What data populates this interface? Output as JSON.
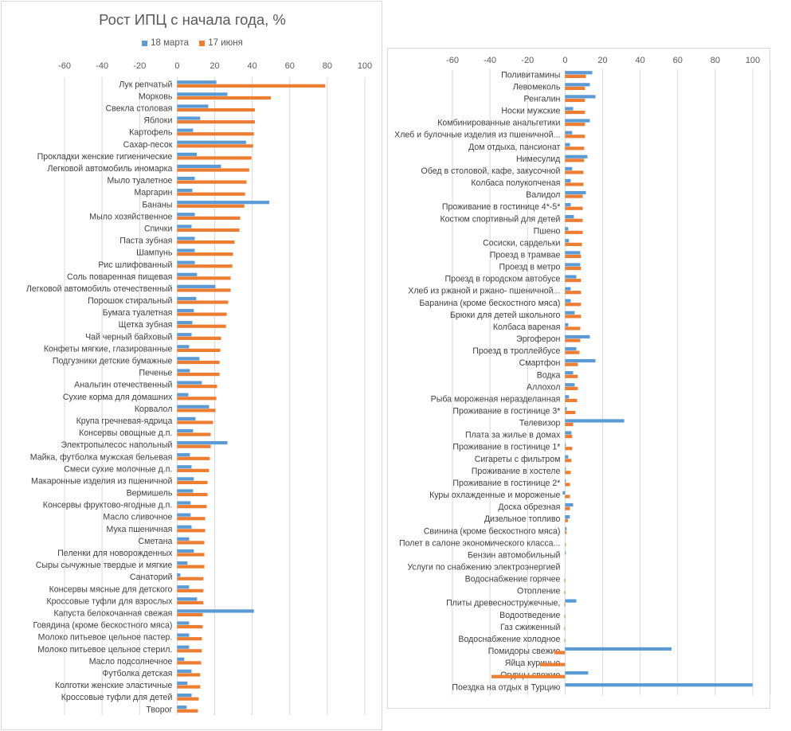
{
  "chart_data": [
    {
      "type": "bar",
      "orientation": "horizontal",
      "title": "Рост ИПЦ с начала года, %",
      "legend": [
        "18 марта",
        "17 июня"
      ],
      "legend_position": "top",
      "xlim": [
        -60,
        100
      ],
      "xticks": [
        -60,
        -40,
        -20,
        0,
        20,
        40,
        60,
        80,
        100
      ],
      "xaxis_position": "top",
      "grid": true,
      "categories": [
        "Лук репчатый",
        "Морковь",
        "Свекла столовая",
        "Яблоки",
        "Картофель",
        "Сахар-песок",
        "Прокладки женские гигиенические",
        "Легковой автомобиль иномарка",
        "Мыло туалетное",
        "Маргарин",
        "Бананы",
        "Мыло хозяйственное",
        "Спички",
        "Паста зубная",
        "Шампунь",
        "Рис шлифованный",
        "Соль поваренная пищевая",
        "Легковой автомобиль отечественный",
        "Порошок стиральный",
        "Бумага туалетная",
        "Щетка зубная",
        "Чай черный байховый",
        "Конфеты мягкие, глазированные",
        "Подгузники детские бумажные",
        "Печенье",
        "Анальгин отечественный",
        "Сухие корма для домашних",
        "Корвалол",
        "Крупа гречневая-ядрица",
        "Консервы овощные д.п.",
        "Электропылесос напольный",
        "Майка, футболка мужская бельевая",
        "Смеси сухие молочные д.п.",
        "Макаронные изделия из пшеничной",
        "Вермишель",
        "Консервы фруктово-ягодные д.п.",
        "Масло сливочное",
        "Мука пшеничная",
        "Сметана",
        "Пеленки для новорожденных",
        "Сыры сычужные твердые и мягкие",
        "Санаторий",
        "Консервы мясные для детского",
        "Кроссовые туфли для взрослых",
        "Капуста белокочанная свежая",
        "Говядина (кроме бескостного мяса)",
        "Молоко питьевое цельное пастер.",
        "Молоко питьевое цельное стерил.",
        "Масло подсолнечное",
        "Футболка детская",
        "Колготки женские эластичные",
        "Кроссовые туфли для детей",
        "Творог"
      ],
      "series": [
        {
          "name": "18 марта",
          "color": "#5B9BD5",
          "values": [
            20.9,
            26.8,
            16.6,
            12.3,
            8.5,
            36.7,
            10.5,
            23.4,
            9.4,
            8.1,
            49.1,
            9.4,
            7.7,
            9.4,
            9.4,
            9.4,
            10.6,
            20.4,
            10.2,
            8.9,
            8.1,
            7.7,
            6.4,
            11.9,
            6.8,
            13.2,
            6.0,
            17.0,
            9.8,
            8.5,
            26.8,
            6.8,
            7.7,
            8.9,
            8.5,
            7.2,
            7.2,
            7.7,
            6.4,
            8.9,
            5.5,
            1.7,
            6.4,
            10.6,
            40.9,
            6.4,
            6.4,
            6.4,
            3.8,
            7.7,
            5.5,
            7.7,
            5.1
          ]
        },
        {
          "name": "17 июня",
          "color": "#ED7D31",
          "values": [
            78.9,
            49.9,
            41.4,
            41.4,
            40.9,
            40.5,
            39.6,
            38.4,
            37.0,
            36.2,
            35.8,
            33.6,
            33.2,
            30.6,
            29.8,
            29.4,
            28.5,
            28.5,
            27.2,
            26.4,
            26.0,
            23.4,
            23.0,
            22.6,
            22.6,
            21.3,
            20.9,
            20.4,
            19.1,
            17.9,
            17.9,
            17.4,
            17.0,
            16.2,
            16.2,
            15.7,
            14.9,
            14.9,
            14.5,
            14.5,
            14.5,
            14.0,
            14.0,
            14.0,
            13.6,
            13.6,
            13.2,
            13.2,
            12.8,
            12.3,
            12.3,
            11.5,
            11.1
          ]
        }
      ]
    },
    {
      "type": "bar",
      "orientation": "horizontal",
      "title": "",
      "xlim": [
        -60,
        100
      ],
      "xticks": [
        -60,
        -40,
        -20,
        0,
        20,
        40,
        60,
        80,
        100
      ],
      "xaxis_position": "top",
      "grid": true,
      "categories": [
        "Поливитамины",
        "Левомеколь",
        "Ренгалин",
        "Носки мужские",
        "Комбинированные анальгетики",
        "Хлеб и булочные изделия из пшеничной...",
        "Дом отдыха, пансионат",
        "Нимесулид",
        "Обед в столовой, кафе, закусочной",
        "Колбаса полукопченая",
        "Валидол",
        "Проживание в гостинице 4*-5*",
        "Костюм спортивный для детей",
        "Пшено",
        "Сосиски, сардельки",
        "Проезд в трамвае",
        "Проезд в метро",
        "Проезд в городском автобусе",
        "Хлеб из ржаной и ржано- пшеничной...",
        "Баранина (кроме бескостного мяса)",
        "Брюки для детей школьного",
        "Колбаса вареная",
        "Эргоферон",
        "Проезд в троллейбусе",
        "Смартфон",
        "Водка",
        "Аллохол",
        "Рыба мороженая неразделанная",
        "Проживание в гостинице 3*",
        "Телевизор",
        "Плата за жилье в домах",
        "Проживание в гостинице 1*",
        "Сигареты с фильтром",
        "Проживание в хостеле",
        "Проживание в гостинице 2*",
        "Куры охлажденные и мороженые",
        "Доска обрезная",
        "Дизельное топливо",
        "Свинина (кроме бескостного мяса)",
        "Полет в салоне экономического класса...",
        "Бензин автомобильный",
        "Услуги по снабжению электроэнергией",
        "Водоснабжение горячее",
        "Отопление",
        "Плиты древесностружечные,",
        "Водоотведение",
        "Газ сжиженный",
        "Водоснабжение холодное",
        "Помидоры свежие",
        "Яйца куриные",
        "Огурцы свежие",
        "Поездка на отдых в Турцию"
      ],
      "series": [
        {
          "name": "18 марта",
          "color": "#5B9BD5",
          "values": [
            14.5,
            13.2,
            16.2,
            4.3,
            13.2,
            3.8,
            2.6,
            11.9,
            3.8,
            3.0,
            11.1,
            3.0,
            4.7,
            1.7,
            2.1,
            8.1,
            8.1,
            6.0,
            3.0,
            3.0,
            5.1,
            1.7,
            13.2,
            6.0,
            16.2,
            4.3,
            5.1,
            2.1,
            0.9,
            31.5,
            3.4,
            0.4,
            1.7,
            0.4,
            0.4,
            -1.3,
            4.3,
            2.5,
            0.8,
            0.0,
            0.4,
            0.0,
            0.0,
            0.0,
            6.0,
            0.0,
            0.0,
            0.0,
            56.7,
            0.0,
            12.3,
            99.9
          ]
        },
        {
          "name": "17 июня",
          "color": "#ED7D31",
          "values": [
            11.1,
            10.6,
            10.6,
            10.6,
            10.6,
            10.6,
            10.2,
            10.2,
            9.8,
            9.8,
            9.4,
            9.4,
            9.4,
            9.4,
            9.0,
            8.5,
            8.5,
            8.5,
            8.5,
            8.5,
            8.5,
            8.1,
            8.1,
            7.7,
            6.8,
            6.8,
            6.8,
            6.4,
            5.5,
            4.3,
            3.8,
            3.8,
            3.4,
            3.0,
            2.6,
            2.6,
            2.6,
            1.5,
            0.8,
            0.4,
            0.0,
            0.0,
            -0.4,
            -0.4,
            -0.4,
            -0.4,
            -0.4,
            -0.4,
            -5.8,
            -13.4,
            -39.2,
            0.0
          ]
        }
      ]
    }
  ]
}
